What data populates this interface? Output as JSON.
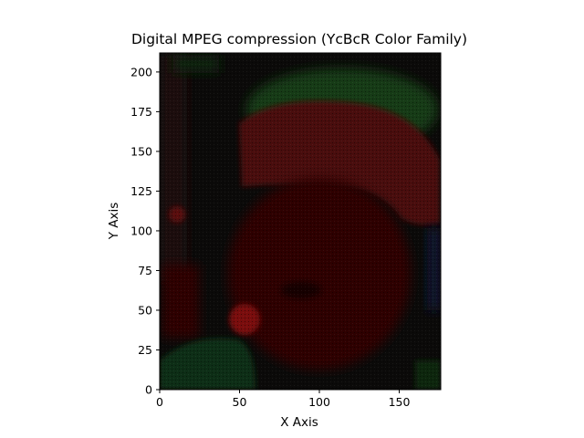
{
  "chart_data": {
    "type": "heatmap",
    "title": "Digital MPEG compression (YcBcR Color Family)",
    "xlabel": "X Axis",
    "ylabel": "Y Axis",
    "xlim": [
      0,
      176
    ],
    "ylim": [
      0,
      212
    ],
    "x_ticks": [
      0,
      50,
      100,
      150
    ],
    "y_ticks": [
      0,
      25,
      50,
      75,
      100,
      125,
      150,
      175,
      200
    ],
    "grid": false,
    "legend": "none",
    "image_content": "Dark YCbCr-channel rendering of a face wearing a cap, dominated by dark red and dark green tones with fine block-compression artifacts",
    "colors": {
      "background": "#0a0a0a",
      "cap_green": "#123a16",
      "face_red": "#3a0606",
      "cap_red": "#4c0707",
      "ball_red": "#6e0b0b",
      "sleeve_green": "#0f2e11",
      "edge_blue": "#0a1228"
    }
  }
}
